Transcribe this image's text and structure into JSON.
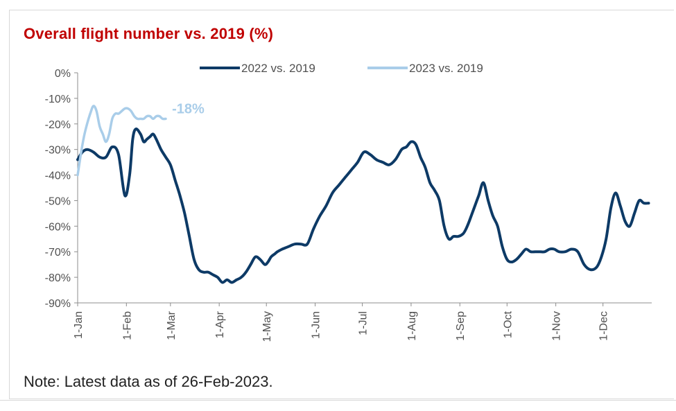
{
  "chart_data": {
    "type": "line",
    "title": "Overall flight number vs. 2019 (%)",
    "xlabel": "",
    "ylabel": "",
    "ylim": [
      -90,
      0
    ],
    "y_ticks": [
      0,
      -10,
      -20,
      -30,
      -40,
      -50,
      -60,
      -70,
      -80,
      -90
    ],
    "y_tick_labels": [
      "0%",
      "-10%",
      "-20%",
      "-30%",
      "-40%",
      "-50%",
      "-60%",
      "-70%",
      "-80%",
      "-90%"
    ],
    "x_tick_labels": [
      "1-Jan",
      "1-Feb",
      "1-Mar",
      "1-Apr",
      "1-May",
      "1-Jun",
      "1-Jul",
      "1-Aug",
      "1-Sep",
      "1-Oct",
      "1-Nov",
      "1-Dec"
    ],
    "x_tick_days": [
      0,
      31,
      59,
      90,
      120,
      151,
      181,
      212,
      243,
      273,
      304,
      334
    ],
    "xlim": [
      0,
      365
    ],
    "legend_position": "top",
    "series": [
      {
        "name": "2022 vs. 2019",
        "color": "#0d3a66",
        "x": [
          0,
          3,
          6,
          10,
          14,
          18,
          22,
          26,
          30,
          33,
          35,
          37,
          40,
          42,
          44,
          46,
          48,
          50,
          53,
          56,
          59,
          62,
          65,
          68,
          71,
          74,
          77,
          80,
          83,
          86,
          89,
          92,
          95,
          98,
          101,
          104,
          107,
          110,
          113,
          116,
          119,
          121,
          123,
          125,
          127,
          130,
          134,
          138,
          142,
          146,
          150,
          154,
          158,
          162,
          166,
          170,
          174,
          178,
          182,
          186,
          190,
          194,
          198,
          202,
          206,
          209,
          212,
          215,
          218,
          221,
          224,
          227,
          230,
          233,
          236,
          239,
          242,
          245,
          247,
          249,
          252,
          255,
          258,
          261,
          264,
          267,
          270,
          273,
          276,
          279,
          282,
          285,
          288,
          291,
          294,
          297,
          300,
          303,
          306,
          310,
          314,
          318,
          322,
          326,
          330,
          333,
          336,
          339,
          342,
          345,
          348,
          351,
          354,
          357,
          360,
          363
        ],
        "values": [
          -34,
          -31,
          -30,
          -31,
          -33,
          -33,
          -29,
          -32,
          -48,
          -40,
          -26,
          -22,
          -24,
          -27,
          -26,
          -25,
          -24,
          -26,
          -30,
          -33,
          -36,
          -42,
          -48,
          -55,
          -64,
          -73,
          -77,
          -78,
          -78,
          -79,
          -80,
          -82,
          -81,
          -82,
          -81,
          -80,
          -78,
          -75,
          -72,
          -73,
          -75,
          -74,
          -72,
          -71,
          -70,
          -69,
          -68,
          -67,
          -67,
          -67,
          -61,
          -56,
          -52,
          -47,
          -44,
          -41,
          -38,
          -35,
          -31,
          -32,
          -34,
          -35,
          -36,
          -34,
          -30,
          -29,
          -27,
          -28,
          -33,
          -37,
          -43,
          -46,
          -50,
          -60,
          -65,
          -64,
          -64,
          -63,
          -61,
          -58,
          -53,
          -48,
          -43,
          -50,
          -56,
          -60,
          -68,
          -73,
          -74,
          -73,
          -71,
          -69,
          -70,
          -70,
          -70,
          -70,
          -69,
          -69,
          -70,
          -70,
          -69,
          -70,
          -75,
          -77,
          -76,
          -72,
          -65,
          -53,
          -47,
          -52,
          -58,
          -60,
          -55,
          -50,
          -51,
          -51
        ],
        "x_plot": [
          0,
          3,
          6,
          10,
          14,
          18,
          22,
          26,
          30,
          33,
          35,
          37,
          40,
          42,
          44,
          46,
          48,
          50,
          53,
          56,
          59,
          62,
          65,
          68,
          71,
          74,
          77,
          80,
          83,
          86,
          89,
          92,
          95,
          98,
          101,
          104,
          107,
          110,
          113,
          116,
          119,
          121,
          123,
          125,
          127,
          130,
          134,
          138,
          142,
          146,
          150,
          154,
          158,
          162,
          166,
          170,
          174,
          178,
          182,
          186,
          190,
          194,
          198,
          202,
          206,
          209,
          212,
          215,
          218,
          221,
          224,
          227,
          230,
          233,
          236,
          239,
          242,
          245,
          247,
          249,
          252,
          255,
          258,
          261,
          264,
          267,
          270,
          273,
          276,
          279,
          282,
          285,
          288,
          291,
          294,
          297,
          300,
          303,
          306,
          310,
          314,
          318,
          322,
          326,
          330,
          333,
          336,
          339,
          342,
          345,
          348,
          351,
          354,
          357,
          360,
          363
        ]
      },
      {
        "name": "2023 vs. 2019",
        "color": "#a9cde9",
        "x": [
          0,
          2,
          4,
          6,
          8,
          10,
          12,
          14,
          16,
          18,
          20,
          22,
          24,
          26,
          28,
          30,
          32,
          34,
          36,
          38,
          40,
          42,
          44,
          46,
          48,
          50,
          52,
          54,
          56
        ],
        "values": [
          -40,
          -32,
          -25,
          -20,
          -16,
          -13,
          -15,
          -21,
          -24,
          -27,
          -24,
          -18,
          -16,
          -16,
          -15,
          -14,
          -14,
          -15,
          -17,
          -18,
          -18,
          -18,
          -17,
          -17,
          -18,
          -17,
          -17,
          -18,
          -18
        ]
      }
    ],
    "annotations": [
      {
        "text": "-18%",
        "x": 60,
        "y": -14,
        "color": "#a9cde9"
      }
    ]
  },
  "note": "Note: Latest data as of 26-Feb-2023."
}
